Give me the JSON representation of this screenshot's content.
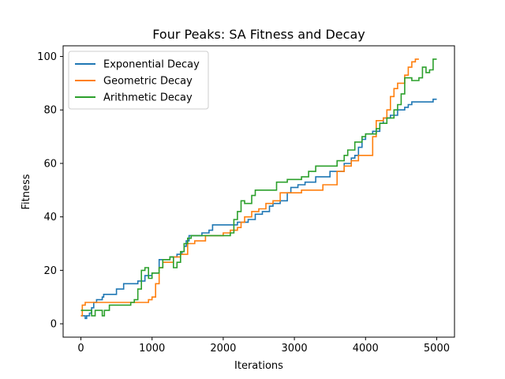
{
  "chart_data": {
    "type": "line",
    "title": "Four Peaks: SA Fitness and Decay",
    "xlabel": "Iterations",
    "ylabel": "Fitness",
    "xlim": [
      -250,
      5250
    ],
    "ylim": [
      -5,
      104
    ],
    "xticks": [
      0,
      1000,
      2000,
      3000,
      4000,
      5000
    ],
    "yticks": [
      0,
      20,
      40,
      60,
      80,
      100
    ],
    "grid": false,
    "legend_position": "upper-left",
    "series": [
      {
        "name": "Exponential Decay",
        "color": "#1f77b4",
        "points": [
          [
            0,
            3
          ],
          [
            30,
            3
          ],
          [
            60,
            2
          ],
          [
            80,
            3
          ],
          [
            120,
            4
          ],
          [
            150,
            6
          ],
          [
            180,
            8
          ],
          [
            220,
            9
          ],
          [
            300,
            10
          ],
          [
            320,
            11
          ],
          [
            500,
            13
          ],
          [
            600,
            15
          ],
          [
            800,
            16
          ],
          [
            900,
            18
          ],
          [
            1000,
            19
          ],
          [
            1100,
            24
          ],
          [
            1250,
            25
          ],
          [
            1350,
            26
          ],
          [
            1420,
            27
          ],
          [
            1450,
            29
          ],
          [
            1480,
            31
          ],
          [
            1520,
            33
          ],
          [
            1600,
            33
          ],
          [
            1700,
            34
          ],
          [
            1800,
            35
          ],
          [
            1850,
            37
          ],
          [
            2000,
            37
          ],
          [
            2200,
            38
          ],
          [
            2350,
            39
          ],
          [
            2450,
            41
          ],
          [
            2550,
            42
          ],
          [
            2650,
            44
          ],
          [
            2700,
            45
          ],
          [
            2800,
            46
          ],
          [
            2900,
            49
          ],
          [
            2950,
            51
          ],
          [
            3000,
            51
          ],
          [
            3050,
            52
          ],
          [
            3150,
            53
          ],
          [
            3300,
            55
          ],
          [
            3500,
            57
          ],
          [
            3700,
            60
          ],
          [
            3800,
            62
          ],
          [
            3850,
            63
          ],
          [
            3900,
            66
          ],
          [
            3950,
            69
          ],
          [
            4000,
            71
          ],
          [
            4100,
            72
          ],
          [
            4200,
            75
          ],
          [
            4250,
            77
          ],
          [
            4350,
            78
          ],
          [
            4450,
            80
          ],
          [
            4550,
            81
          ],
          [
            4600,
            82
          ],
          [
            4650,
            83
          ],
          [
            4900,
            83
          ],
          [
            4950,
            84
          ],
          [
            5000,
            84
          ]
        ]
      },
      {
        "name": "Geometric Decay",
        "color": "#ff7f0e",
        "points": [
          [
            0,
            3
          ],
          [
            20,
            7
          ],
          [
            60,
            8
          ],
          [
            300,
            8
          ],
          [
            900,
            8
          ],
          [
            950,
            9
          ],
          [
            1000,
            10
          ],
          [
            1050,
            15
          ],
          [
            1100,
            21
          ],
          [
            1150,
            23
          ],
          [
            1300,
            25
          ],
          [
            1400,
            26
          ],
          [
            1500,
            30
          ],
          [
            1600,
            31
          ],
          [
            1700,
            31
          ],
          [
            1750,
            33
          ],
          [
            1900,
            33
          ],
          [
            2000,
            34
          ],
          [
            2100,
            35
          ],
          [
            2200,
            36
          ],
          [
            2250,
            38
          ],
          [
            2300,
            40
          ],
          [
            2400,
            42
          ],
          [
            2500,
            43
          ],
          [
            2600,
            45
          ],
          [
            2700,
            46
          ],
          [
            2800,
            49
          ],
          [
            3000,
            49
          ],
          [
            3100,
            50
          ],
          [
            3200,
            50
          ],
          [
            3400,
            52
          ],
          [
            3600,
            57
          ],
          [
            3700,
            59
          ],
          [
            3800,
            61
          ],
          [
            3900,
            63
          ],
          [
            4050,
            63
          ],
          [
            4100,
            70
          ],
          [
            4150,
            76
          ],
          [
            4250,
            77
          ],
          [
            4300,
            80
          ],
          [
            4350,
            85
          ],
          [
            4400,
            88
          ],
          [
            4450,
            90
          ],
          [
            4550,
            93
          ],
          [
            4600,
            96
          ],
          [
            4650,
            98
          ],
          [
            4700,
            99
          ],
          [
            4750,
            99
          ]
        ]
      },
      {
        "name": "Arithmetic Decay",
        "color": "#2ca02c",
        "points": [
          [
            0,
            5
          ],
          [
            100,
            5
          ],
          [
            150,
            3
          ],
          [
            200,
            5
          ],
          [
            300,
            3
          ],
          [
            330,
            5
          ],
          [
            400,
            7
          ],
          [
            700,
            8
          ],
          [
            750,
            9
          ],
          [
            800,
            13
          ],
          [
            850,
            20
          ],
          [
            900,
            21
          ],
          [
            950,
            17
          ],
          [
            1000,
            19
          ],
          [
            1100,
            21
          ],
          [
            1150,
            24
          ],
          [
            1250,
            25
          ],
          [
            1300,
            21
          ],
          [
            1350,
            23
          ],
          [
            1400,
            27
          ],
          [
            1450,
            30
          ],
          [
            1500,
            32
          ],
          [
            1550,
            33
          ],
          [
            2100,
            34
          ],
          [
            2150,
            39
          ],
          [
            2200,
            42
          ],
          [
            2250,
            46
          ],
          [
            2300,
            45
          ],
          [
            2400,
            48
          ],
          [
            2450,
            50
          ],
          [
            2700,
            50
          ],
          [
            2750,
            53
          ],
          [
            2900,
            54
          ],
          [
            3100,
            55
          ],
          [
            3200,
            57
          ],
          [
            3300,
            59
          ],
          [
            3500,
            59
          ],
          [
            3600,
            61
          ],
          [
            3700,
            63
          ],
          [
            3750,
            65
          ],
          [
            3850,
            68
          ],
          [
            3950,
            70
          ],
          [
            4000,
            71
          ],
          [
            4100,
            71
          ],
          [
            4150,
            73
          ],
          [
            4200,
            75
          ],
          [
            4300,
            77
          ],
          [
            4400,
            80
          ],
          [
            4450,
            82
          ],
          [
            4500,
            86
          ],
          [
            4550,
            92
          ],
          [
            4650,
            91
          ],
          [
            4750,
            92
          ],
          [
            4800,
            96
          ],
          [
            4850,
            94
          ],
          [
            4900,
            95
          ],
          [
            4950,
            99
          ],
          [
            5000,
            99
          ]
        ]
      }
    ]
  }
}
